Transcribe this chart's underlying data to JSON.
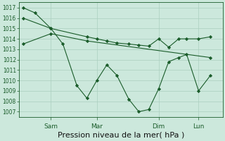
{
  "background_color": "#cce8dc",
  "grid_color": "#aacfbf",
  "line_color": "#1a5c2a",
  "xlabel": "Pression niveau de la mer( hPa )",
  "xlabel_fontsize": 8,
  "ylim": [
    1006.5,
    1017.5
  ],
  "yticks": [
    1007,
    1008,
    1009,
    1010,
    1011,
    1012,
    1013,
    1014,
    1015,
    1016,
    1017
  ],
  "ytick_fontsize": 5.5,
  "xtick_labels": [
    "Sam",
    "Mar",
    "Dim",
    "Lun"
  ],
  "xtick_positions": [
    0.14,
    0.37,
    0.68,
    0.88
  ],
  "series1_x": [
    0.0,
    0.06,
    0.14,
    0.2,
    0.27,
    0.32,
    0.37,
    0.42,
    0.47,
    0.53,
    0.58,
    0.63,
    0.68,
    0.73,
    0.78,
    0.82,
    0.88,
    0.94
  ],
  "series1_y": [
    1017.0,
    1016.5,
    1015.0,
    1013.5,
    1009.5,
    1008.3,
    1010.0,
    1011.5,
    1010.5,
    1008.2,
    1007.0,
    1007.2,
    1009.2,
    1011.8,
    1012.2,
    1012.5,
    1009.0,
    1010.5
  ],
  "series2_x": [
    0.0,
    0.14,
    0.32,
    0.37,
    0.42,
    0.47,
    0.53,
    0.58,
    0.63,
    0.68,
    0.73,
    0.78,
    0.82,
    0.88,
    0.94
  ],
  "series2_y": [
    1016.0,
    1015.0,
    1014.2,
    1014.0,
    1013.8,
    1013.6,
    1013.5,
    1013.4,
    1013.3,
    1014.0,
    1013.2,
    1014.0,
    1014.0,
    1014.0,
    1014.2
  ],
  "series3_x": [
    0.0,
    0.14,
    0.32,
    0.94
  ],
  "series3_y": [
    1013.5,
    1014.5,
    1013.8,
    1012.2
  ],
  "xlim": [
    -0.02,
    1.0
  ]
}
